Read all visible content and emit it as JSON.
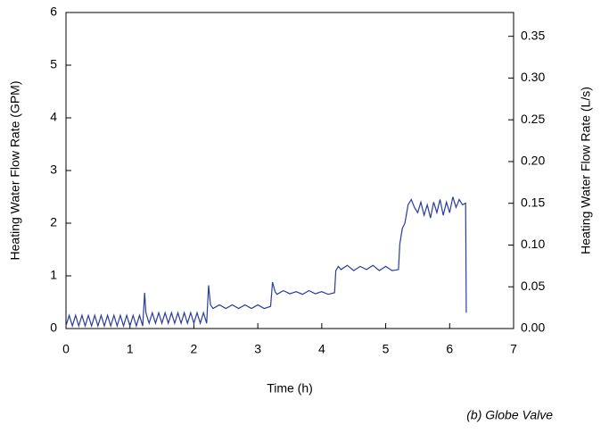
{
  "chart_data": {
    "type": "line",
    "xlabel": "Time (h)",
    "ylabel": "Heating Water Flow Rate (GPM)",
    "y2label": "Heating Water Flow Rate (L/s)",
    "caption": "(b) Globe Valve",
    "color": "#2a3c9e",
    "x": [
      0,
      0.05,
      0.1,
      0.15,
      0.2,
      0.25,
      0.3,
      0.35,
      0.4,
      0.45,
      0.5,
      0.55,
      0.6,
      0.65,
      0.7,
      0.75,
      0.8,
      0.85,
      0.9,
      0.95,
      1.0,
      1.05,
      1.1,
      1.15,
      1.2,
      1.23,
      1.25,
      1.3,
      1.35,
      1.4,
      1.45,
      1.5,
      1.55,
      1.6,
      1.65,
      1.7,
      1.75,
      1.8,
      1.85,
      1.9,
      1.95,
      2.0,
      2.05,
      2.1,
      2.15,
      2.2,
      2.23,
      2.26,
      2.3,
      2.4,
      2.5,
      2.6,
      2.7,
      2.8,
      2.9,
      3.0,
      3.1,
      3.2,
      3.23,
      3.27,
      3.3,
      3.4,
      3.5,
      3.6,
      3.7,
      3.8,
      3.9,
      4.0,
      4.1,
      4.2,
      4.22,
      4.26,
      4.3,
      4.4,
      4.5,
      4.6,
      4.7,
      4.8,
      4.9,
      5.0,
      5.1,
      5.2,
      5.22,
      5.26,
      5.3,
      5.35,
      5.4,
      5.45,
      5.5,
      5.55,
      5.6,
      5.65,
      5.7,
      5.75,
      5.8,
      5.85,
      5.9,
      5.95,
      6.0,
      6.05,
      6.1,
      6.15,
      6.2,
      6.25,
      6.26
    ],
    "values": [
      0.05,
      0.25,
      0.05,
      0.25,
      0.05,
      0.25,
      0.05,
      0.25,
      0.05,
      0.25,
      0.05,
      0.25,
      0.05,
      0.25,
      0.05,
      0.25,
      0.05,
      0.25,
      0.05,
      0.25,
      0.05,
      0.25,
      0.05,
      0.25,
      0.05,
      0.68,
      0.3,
      0.1,
      0.3,
      0.1,
      0.3,
      0.1,
      0.3,
      0.1,
      0.3,
      0.1,
      0.3,
      0.1,
      0.3,
      0.1,
      0.3,
      0.1,
      0.3,
      0.1,
      0.3,
      0.1,
      0.82,
      0.45,
      0.38,
      0.45,
      0.38,
      0.45,
      0.38,
      0.45,
      0.38,
      0.45,
      0.38,
      0.42,
      0.88,
      0.7,
      0.65,
      0.72,
      0.66,
      0.7,
      0.65,
      0.72,
      0.66,
      0.7,
      0.65,
      0.68,
      1.1,
      1.18,
      1.12,
      1.2,
      1.1,
      1.18,
      1.12,
      1.2,
      1.1,
      1.18,
      1.1,
      1.12,
      1.6,
      1.9,
      2.0,
      2.35,
      2.45,
      2.3,
      2.2,
      2.4,
      2.15,
      2.35,
      2.1,
      2.4,
      2.2,
      2.45,
      2.15,
      2.4,
      2.2,
      2.5,
      2.3,
      2.45,
      2.35,
      2.38,
      0.3
    ],
    "xlim": [
      0,
      7
    ],
    "xticks": [
      0,
      1,
      2,
      3,
      4,
      5,
      6,
      7
    ],
    "ylim": [
      0,
      6
    ],
    "yticks": [
      0,
      1,
      2,
      3,
      4,
      5,
      6
    ],
    "y2lim": [
      0,
      0.3785
    ],
    "y2ticks": [
      {
        "value": 0,
        "label": "0.00"
      },
      {
        "value": 0.05,
        "label": "0.05"
      },
      {
        "value": 0.1,
        "label": "0.10"
      },
      {
        "value": 0.15,
        "label": "0.15"
      },
      {
        "value": 0.2,
        "label": "0.20"
      },
      {
        "value": 0.25,
        "label": "0.25"
      },
      {
        "value": 0.3,
        "label": "0.30"
      },
      {
        "value": 0.35,
        "label": "0.35"
      }
    ]
  }
}
